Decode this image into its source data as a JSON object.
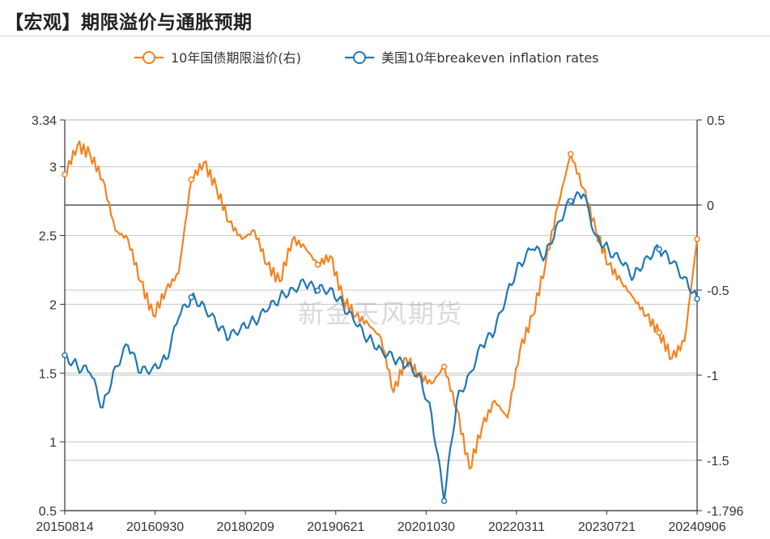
{
  "title": "【宏观】期限溢价与通胀预期",
  "watermark": "新金天风期货",
  "chart_data": {
    "type": "line",
    "title": "【宏观】期限溢价与通胀预期",
    "x_ticks": [
      "20150814",
      "20160930",
      "20180209",
      "20190621",
      "20201030",
      "20220311",
      "20230721",
      "20240906"
    ],
    "left_axis": {
      "range": [
        0.5,
        3.34
      ],
      "ticks": [
        0.5,
        1,
        1.5,
        2,
        2.5,
        3,
        3.34
      ],
      "tick_labels": [
        "0.5",
        "1",
        "1.5",
        "2",
        "2.5",
        "3",
        "3.34"
      ]
    },
    "right_axis": {
      "range": [
        -1.796,
        0.5
      ],
      "ticks": [
        -1.796,
        -1.5,
        -1,
        -0.5,
        0,
        0.5
      ],
      "tick_labels": [
        "-1.796",
        "-1.5",
        "-1",
        "-0.5",
        "0",
        "0.5"
      ]
    },
    "legend_position": "top-center",
    "series": [
      {
        "name": "10年国债期限溢价(右)",
        "axis": "right",
        "color": "#f5821f",
        "x": [
          0,
          0.02,
          0.04,
          0.06,
          0.08,
          0.1,
          0.12,
          0.14,
          0.16,
          0.18,
          0.2,
          0.22,
          0.24,
          0.26,
          0.28,
          0.3,
          0.32,
          0.34,
          0.36,
          0.38,
          0.4,
          0.42,
          0.44,
          0.46,
          0.48,
          0.5,
          0.52,
          0.54,
          0.56,
          0.58,
          0.6,
          0.62,
          0.64,
          0.66,
          0.68,
          0.7,
          0.72,
          0.74,
          0.76,
          0.78,
          0.8,
          0.82,
          0.84,
          0.86,
          0.88,
          0.9,
          0.92,
          0.94,
          0.96,
          0.98,
          1.0
        ],
        "values": [
          0.18,
          0.35,
          0.3,
          0.15,
          -0.15,
          -0.2,
          -0.45,
          -0.65,
          -0.5,
          -0.4,
          0.15,
          0.25,
          0.1,
          -0.1,
          -0.2,
          -0.15,
          -0.35,
          -0.45,
          -0.2,
          -0.25,
          -0.35,
          -0.3,
          -0.55,
          -0.65,
          -0.7,
          -0.78,
          -1.1,
          -0.9,
          -1.0,
          -1.05,
          -0.95,
          -1.2,
          -1.55,
          -1.3,
          -1.15,
          -1.25,
          -0.85,
          -0.65,
          -0.35,
          0.0,
          0.3,
          0.1,
          -0.15,
          -0.35,
          -0.45,
          -0.55,
          -0.65,
          -0.75,
          -0.9,
          -0.8,
          -0.2
        ]
      },
      {
        "name": "美国10年breakeven inflation rates",
        "axis": "left",
        "color": "#1f77b4",
        "x": [
          0,
          0.02,
          0.04,
          0.06,
          0.08,
          0.1,
          0.12,
          0.14,
          0.16,
          0.18,
          0.2,
          0.22,
          0.24,
          0.26,
          0.28,
          0.3,
          0.32,
          0.34,
          0.36,
          0.38,
          0.4,
          0.42,
          0.44,
          0.46,
          0.48,
          0.5,
          0.52,
          0.54,
          0.56,
          0.58,
          0.6,
          0.62,
          0.64,
          0.66,
          0.68,
          0.7,
          0.72,
          0.74,
          0.76,
          0.78,
          0.8,
          0.82,
          0.84,
          0.86,
          0.88,
          0.9,
          0.92,
          0.94,
          0.96,
          0.98,
          1.0
        ],
        "values": [
          1.63,
          1.55,
          1.5,
          1.25,
          1.55,
          1.7,
          1.5,
          1.55,
          1.6,
          1.9,
          2.05,
          2.0,
          1.85,
          1.75,
          1.85,
          1.88,
          1.95,
          2.05,
          2.12,
          2.15,
          2.1,
          2.12,
          2.0,
          1.85,
          1.75,
          1.68,
          1.6,
          1.55,
          1.5,
          1.2,
          0.57,
          1.3,
          1.5,
          1.7,
          1.8,
          2.1,
          2.3,
          2.4,
          2.35,
          2.6,
          2.75,
          2.8,
          2.5,
          2.4,
          2.3,
          2.2,
          2.35,
          2.4,
          2.3,
          2.2,
          2.04
        ]
      }
    ]
  }
}
